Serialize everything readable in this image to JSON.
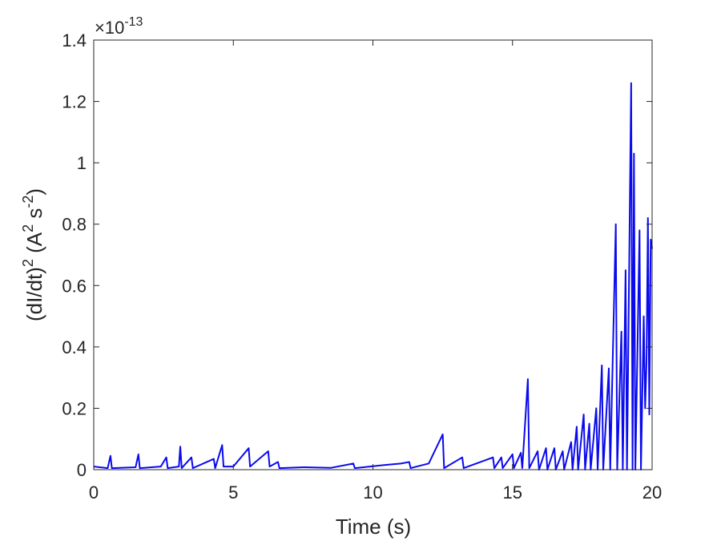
{
  "chart_data": {
    "type": "line",
    "xlabel": "Time (s)",
    "ylabel_parts": [
      {
        "text": "(dI/dt)",
        "sup": false
      },
      {
        "text": "2",
        "sup": true
      },
      {
        "text": " (A",
        "sup": false
      },
      {
        "text": "2",
        "sup": true
      },
      {
        "text": " s",
        "sup": false
      },
      {
        "text": "-2",
        "sup": true
      },
      {
        "text": ")",
        "sup": false
      }
    ],
    "y_multiplier": {
      "base": "×10",
      "exponent": "-13"
    },
    "xlim": [
      0,
      20
    ],
    "xticks": [
      0,
      5,
      10,
      15,
      20
    ],
    "ylim": [
      0,
      1.4
    ],
    "yticks": [
      0,
      0.2,
      0.4,
      0.6,
      0.8,
      1,
      1.2,
      1.4
    ],
    "box": true,
    "x": [
      0,
      0.5,
      0.6,
      0.65,
      1.5,
      1.6,
      1.65,
      2.4,
      2.6,
      2.65,
      3.05,
      3.1,
      3.15,
      3.5,
      3.55,
      4.3,
      4.35,
      4.6,
      4.65,
      5.0,
      5.55,
      5.6,
      6.25,
      6.3,
      6.6,
      6.65,
      7.5,
      8.5,
      9.3,
      9.35,
      10.4,
      11.0,
      11.3,
      11.35,
      12.0,
      12.5,
      12.55,
      13.2,
      13.25,
      14.0,
      14.3,
      14.35,
      14.6,
      14.65,
      15.0,
      15.05,
      15.3,
      15.35,
      15.55,
      15.6,
      15.9,
      15.95,
      16.2,
      16.25,
      16.5,
      16.55,
      16.8,
      16.85,
      17.1,
      17.15,
      17.3,
      17.35,
      17.55,
      17.6,
      17.75,
      17.8,
      18.0,
      18.05,
      18.2,
      18.25,
      18.45,
      18.5,
      18.7,
      18.75,
      18.9,
      18.95,
      19.05,
      19.1,
      19.25,
      19.3,
      19.35,
      19.4,
      19.55,
      19.6,
      19.7,
      19.75,
      19.8,
      19.85,
      19.9,
      19.95,
      20
    ],
    "series": [
      {
        "color": "#0a0aee",
        "values": [
          0.01,
          0.005,
          0.045,
          0.005,
          0.008,
          0.05,
          0.005,
          0.01,
          0.04,
          0.005,
          0.01,
          0.075,
          0.005,
          0.04,
          0.005,
          0.035,
          0.005,
          0.08,
          0.01,
          0.01,
          0.07,
          0.01,
          0.06,
          0.01,
          0.025,
          0.005,
          0.008,
          0.006,
          0.02,
          0.005,
          0.015,
          0.02,
          0.025,
          0.005,
          0.02,
          0.115,
          0.005,
          0.04,
          0.005,
          0.03,
          0.04,
          0.005,
          0.04,
          0.005,
          0.05,
          0.005,
          0.055,
          0.005,
          0.295,
          0.005,
          0.06,
          0,
          0.07,
          0,
          0.07,
          0,
          0.06,
          0,
          0.09,
          0,
          0.14,
          0,
          0.18,
          0,
          0.15,
          0,
          0.2,
          0,
          0.34,
          0,
          0.33,
          0,
          0.8,
          0,
          0.45,
          0,
          0.65,
          0,
          1.26,
          0,
          1.03,
          0,
          0.78,
          0,
          0.5,
          0.2,
          0.35,
          0.82,
          0.18,
          0.75,
          0.72
        ]
      }
    ]
  }
}
